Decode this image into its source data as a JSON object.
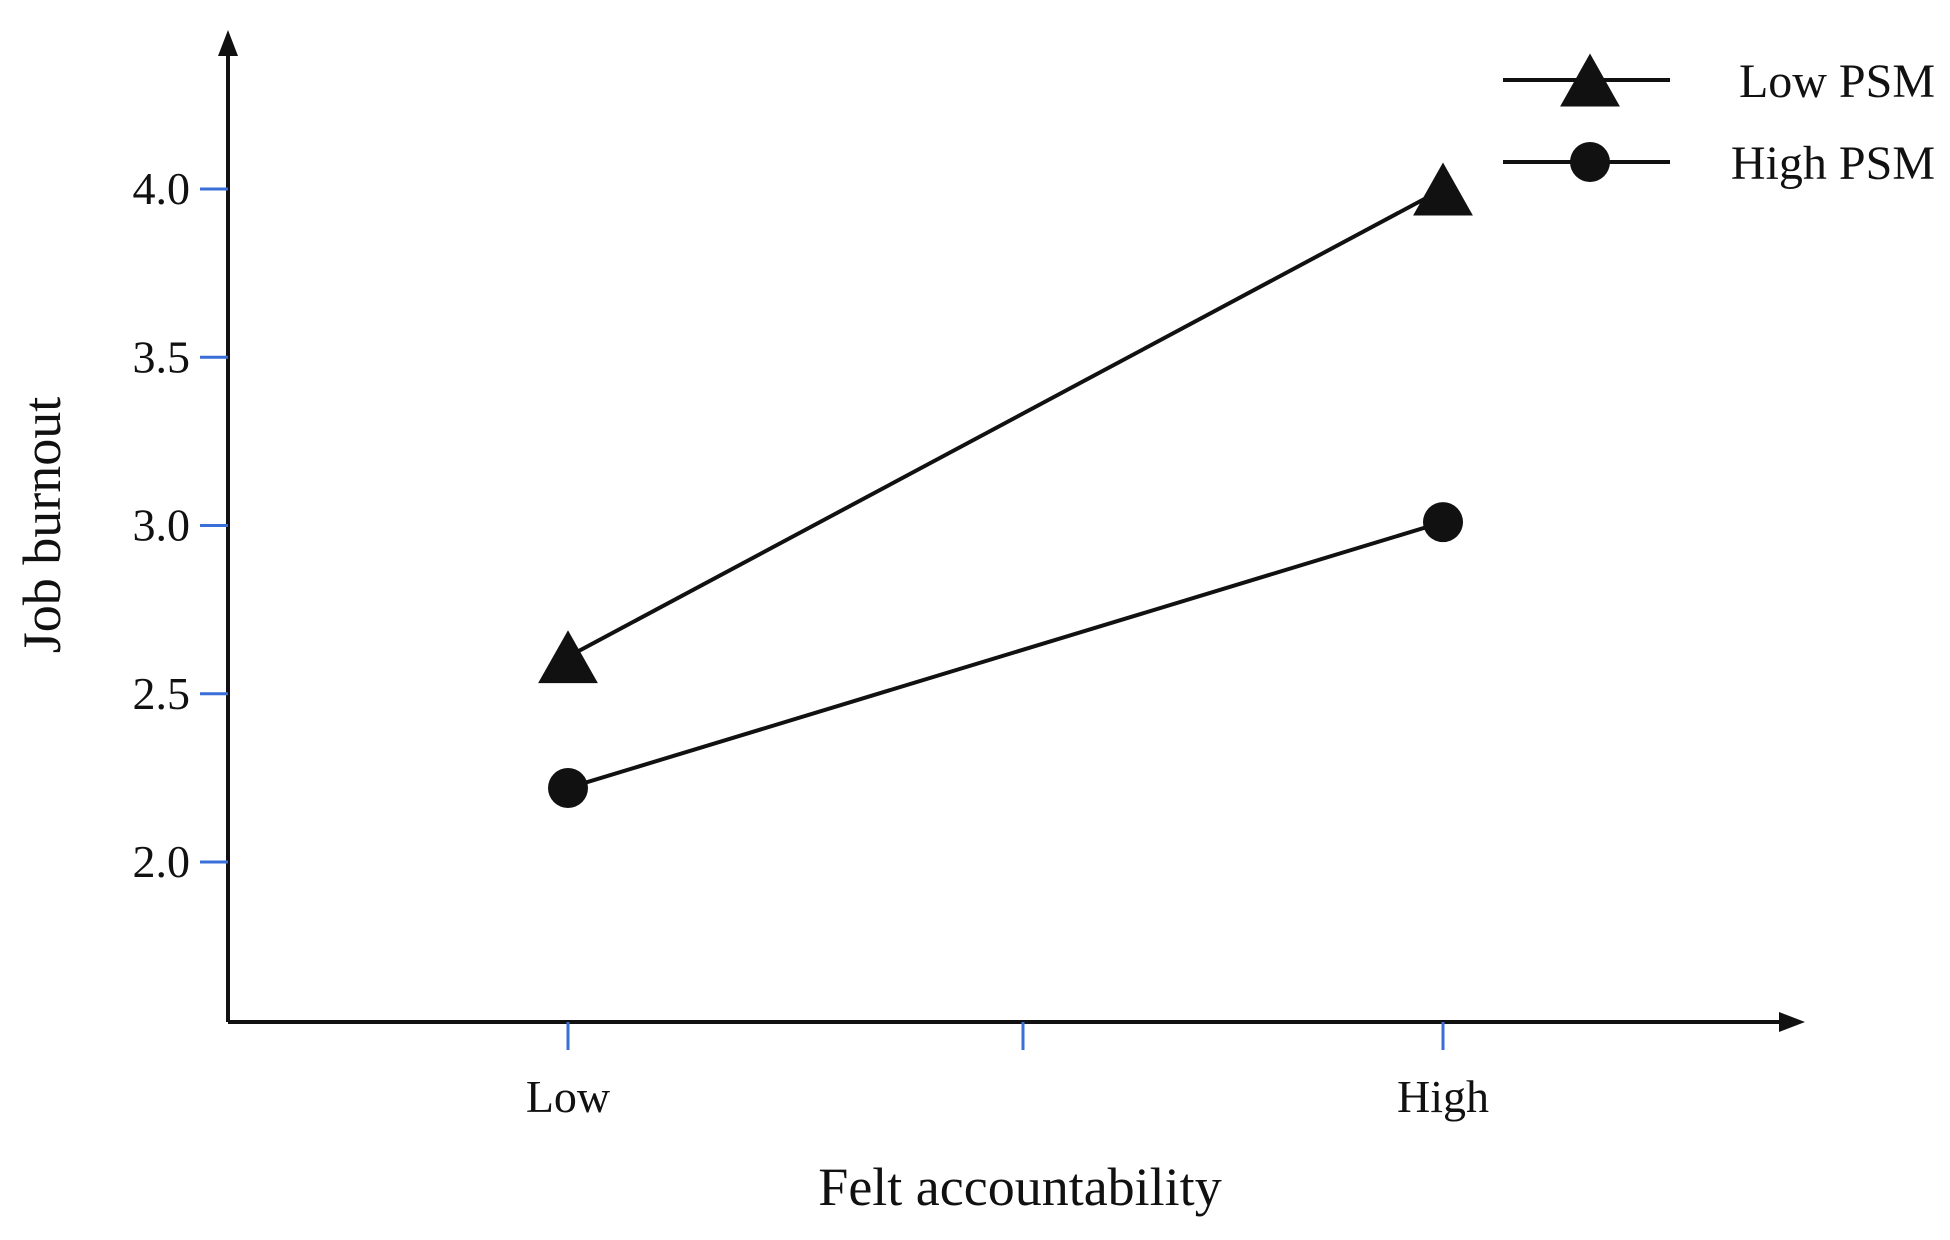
{
  "chart_data": {
    "type": "line",
    "title": "",
    "xlabel": "Felt accountability",
    "ylabel": "Job burnout",
    "categories": [
      "Low",
      "High"
    ],
    "x_tick_labels": [
      "Low",
      "High"
    ],
    "y_ticks": [
      2.0,
      2.5,
      3.0,
      3.5,
      4.0
    ],
    "y_tick_labels": [
      "2.0",
      "2.5",
      "3.0",
      "3.5",
      "4.0"
    ],
    "ylim": [
      1.5,
      4.6
    ],
    "grid": false,
    "legend_position": "top-right",
    "series": [
      {
        "name": "Low PSM",
        "marker": "triangle",
        "values": [
          2.61,
          4.0
        ]
      },
      {
        "name": "High PSM",
        "marker": "circle",
        "values": [
          2.22,
          3.01
        ]
      }
    ],
    "colors": {
      "line": "#111111",
      "tick": "#3a6fd8",
      "axis": "#111111"
    }
  }
}
